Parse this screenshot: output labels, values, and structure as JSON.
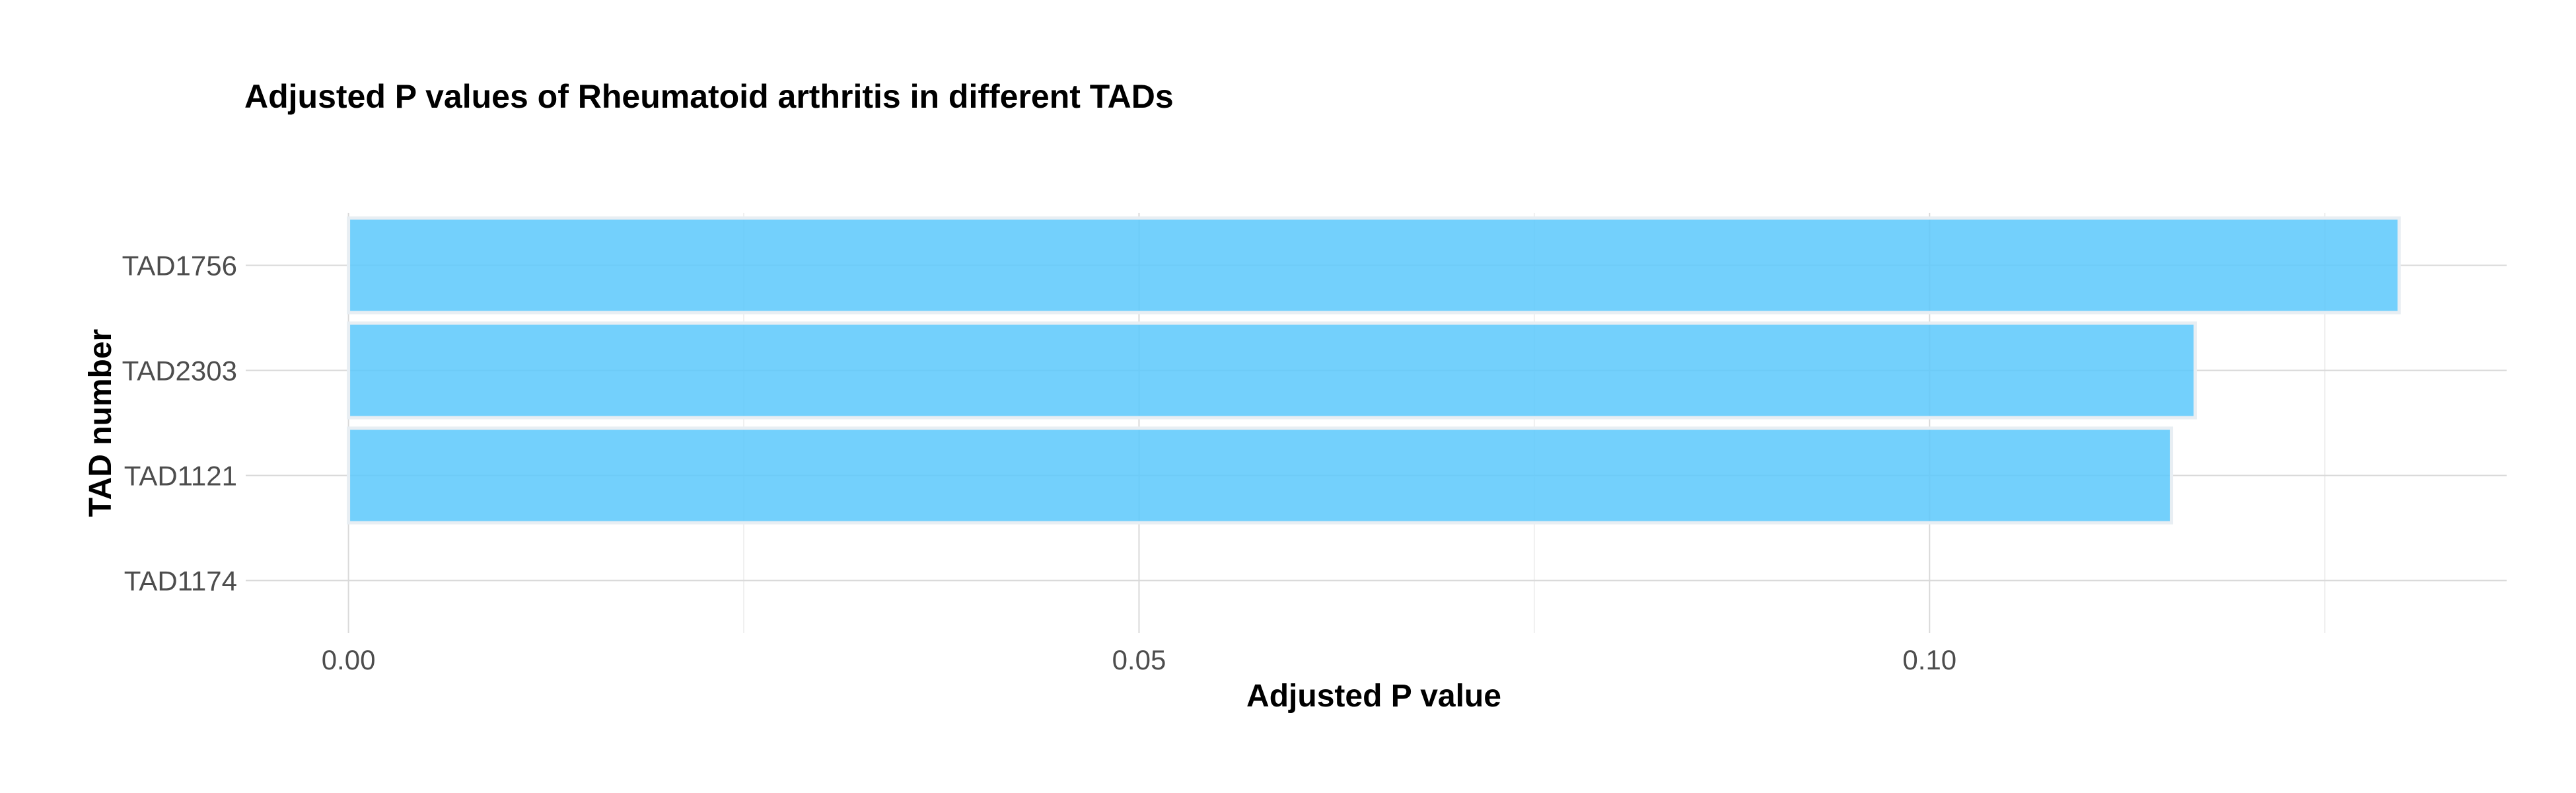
{
  "chart_data": {
    "type": "bar",
    "orientation": "horizontal",
    "title": "Adjusted P values of Rheumatoid arthritis in different TADs",
    "xlabel": "Adjusted P value",
    "ylabel": "TAD number",
    "categories": [
      "TAD1756",
      "TAD2303",
      "TAD1121",
      "TAD1174"
    ],
    "values": [
      0.1297,
      0.1168,
      0.1153,
      0.0
    ],
    "xlim": [
      -0.0065,
      0.1365
    ],
    "x_ticks": [
      0.0,
      0.05,
      0.1
    ],
    "x_tick_labels": [
      "0.00",
      "0.05",
      "0.10"
    ],
    "x_minor_ticks": [
      0.025,
      0.075,
      0.125
    ],
    "bar_color": "#5bc8fb",
    "grid": true,
    "legend": "none"
  }
}
